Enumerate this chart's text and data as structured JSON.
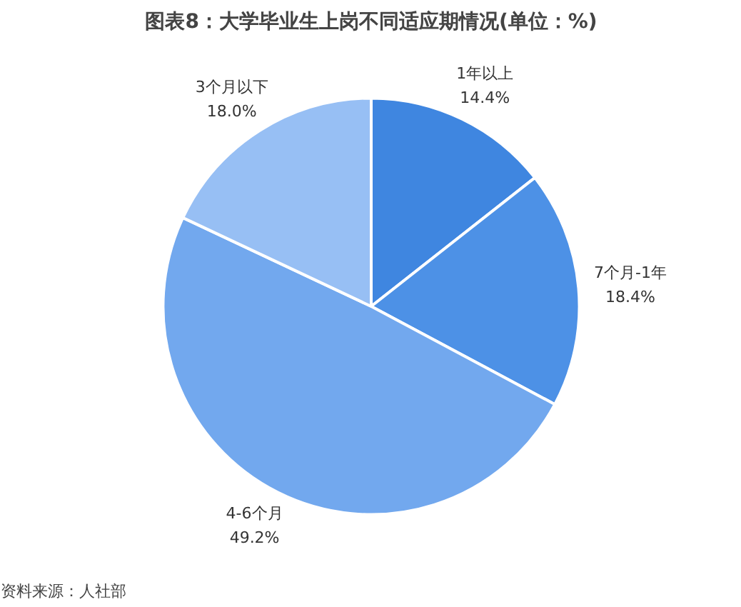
{
  "chart_data": {
    "type": "pie",
    "title": "图表8：大学毕业生上岗不同适应期情况(单位：%)",
    "categories": [
      "1年以上",
      "7个月-1年",
      "4-6个月",
      "3个月以下"
    ],
    "values": [
      14.4,
      18.4,
      49.2,
      18.0
    ],
    "colors": [
      "#3f86e0",
      "#4d91e6",
      "#72a8ee",
      "#97bff4"
    ],
    "value_labels": [
      "14.4%",
      "18.4%",
      "49.2%",
      "18.0%"
    ],
    "annotations": [
      "资料来源：人社部"
    ]
  }
}
